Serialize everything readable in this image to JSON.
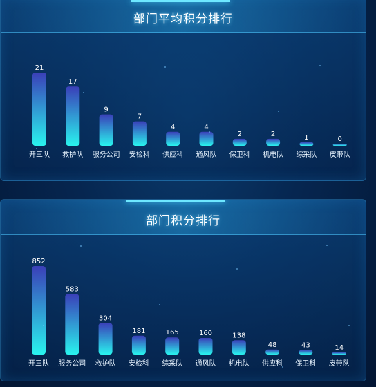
{
  "chart_data": [
    {
      "type": "bar",
      "title": "部门平均积分排行",
      "categories": [
        "开三队",
        "救护队",
        "服务公司",
        "安检科",
        "供应科",
        "通风队",
        "保卫科",
        "机电队",
        "综采队",
        "皮带队"
      ],
      "values": [
        21,
        17,
        9,
        7,
        4,
        4,
        2,
        2,
        1,
        0
      ],
      "ylim": [
        0,
        21
      ],
      "grid": false,
      "colors": {
        "bar_top": "#3a3fb8",
        "bar_bottom": "#29f3ee",
        "label": "#ffffff"
      }
    },
    {
      "type": "bar",
      "title": "部门积分排行",
      "categories": [
        "开三队",
        "服务公司",
        "救护队",
        "安检科",
        "综采队",
        "通风队",
        "机电队",
        "供应科",
        "保卫科",
        "皮带队"
      ],
      "values": [
        852,
        583,
        304,
        181,
        165,
        160,
        138,
        48,
        43,
        14
      ],
      "ylim": [
        0,
        852
      ],
      "grid": false,
      "colors": {
        "bar_top": "#3a3fb8",
        "bar_bottom": "#29f3ee",
        "label": "#ffffff"
      }
    }
  ]
}
